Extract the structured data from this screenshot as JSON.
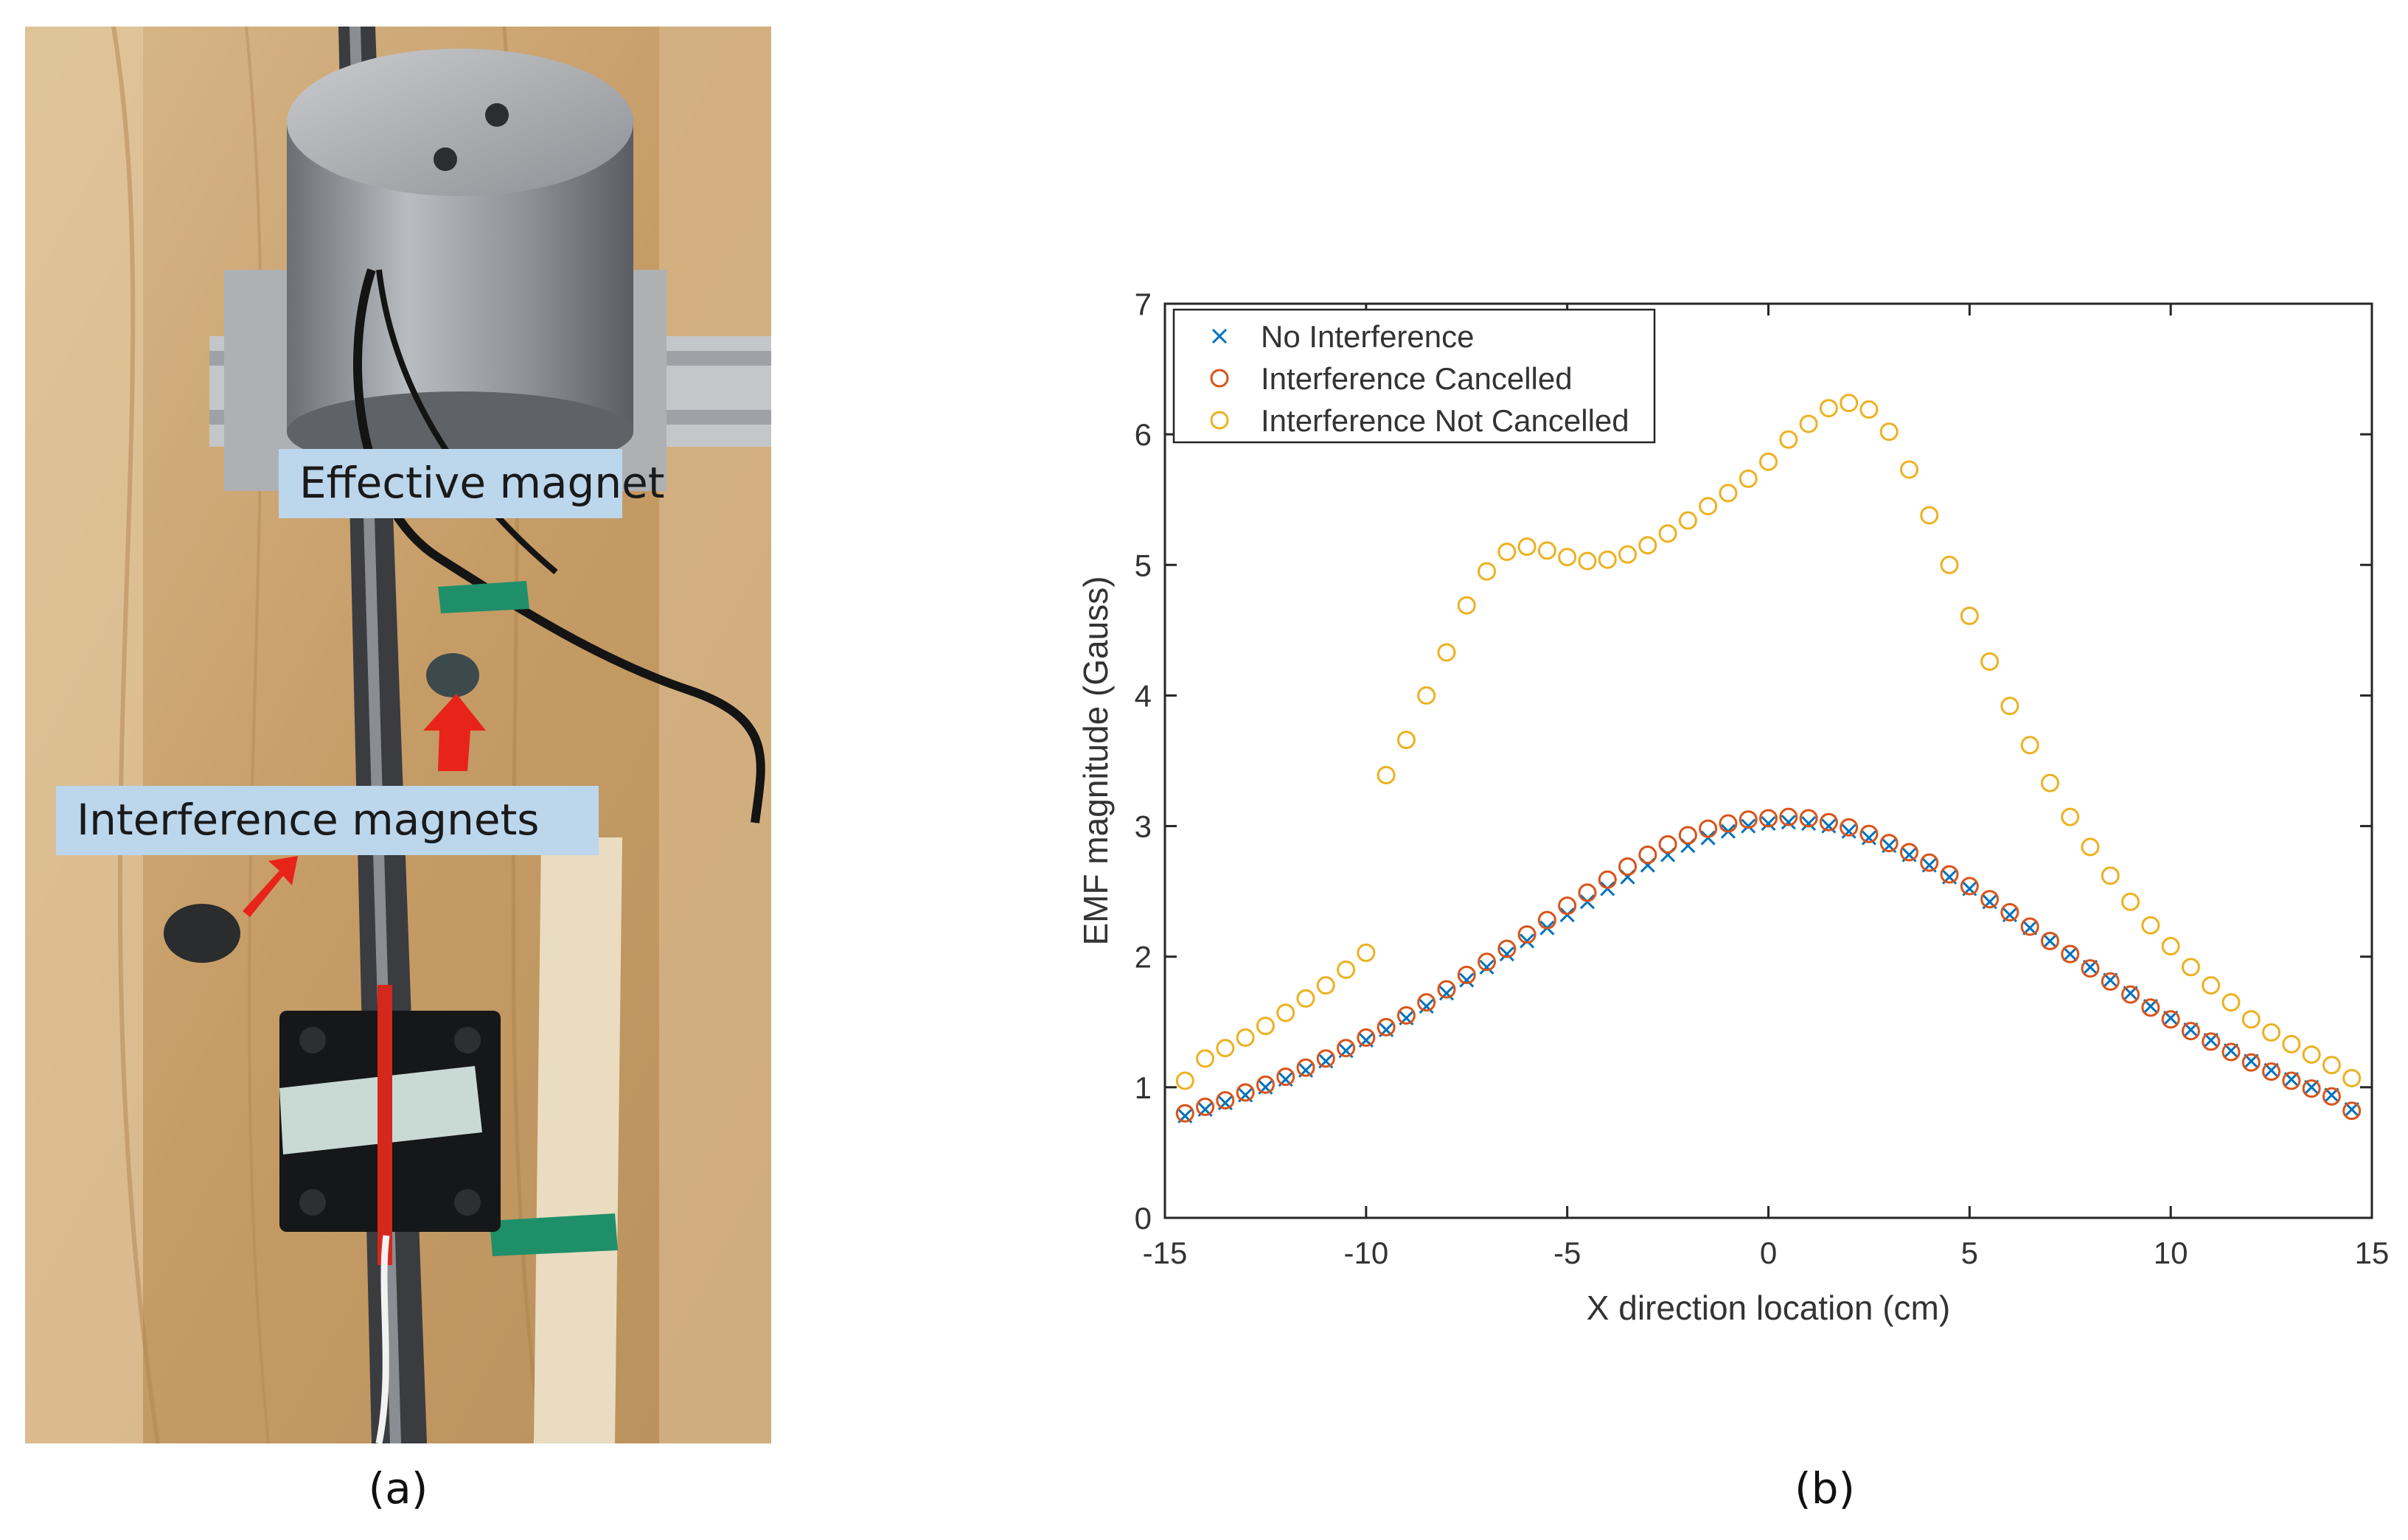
{
  "photo": {
    "effective_label": "Effective magnet",
    "interference_label": "Interference magnets",
    "caption": "(a)",
    "icons": [
      "cylinder-magnet-icon",
      "interference-magnet-icon",
      "red-arrow-icon",
      "sensor-cart-icon"
    ]
  },
  "chart_panel": {
    "caption": "(b)"
  },
  "chart_data": {
    "type": "scatter",
    "title": "",
    "xlabel": "X direction location (cm)",
    "ylabel": "EMF magnitude (Gauss)",
    "xlim": [
      -15,
      15
    ],
    "ylim": [
      0,
      7
    ],
    "xticks": [
      -15,
      -10,
      -5,
      0,
      5,
      10,
      15
    ],
    "yticks": [
      0,
      1,
      2,
      3,
      4,
      5,
      6,
      7
    ],
    "grid": false,
    "legend_position": "top-left",
    "x": [
      -14.5,
      -14,
      -13.5,
      -13,
      -12.5,
      -12,
      -11.5,
      -11,
      -10.5,
      -10,
      -9.5,
      -9,
      -8.5,
      -8,
      -7.5,
      -7,
      -6.5,
      -6,
      -5.5,
      -5,
      -4.5,
      -4,
      -3.5,
      -3,
      -2.5,
      -2,
      -1.5,
      -1,
      -0.5,
      0,
      0.5,
      1,
      1.5,
      2,
      2.5,
      3,
      3.5,
      4,
      4.5,
      5,
      5.5,
      6,
      6.5,
      7,
      7.5,
      8,
      8.5,
      9,
      9.5,
      10,
      10.5,
      11,
      11.5,
      12,
      12.5,
      13,
      13.5,
      14,
      14.5
    ],
    "series": [
      {
        "name": "No Interference",
        "marker": "x",
        "color": "#0072bd",
        "values": [
          0.78,
          0.83,
          0.88,
          0.94,
          1.0,
          1.06,
          1.13,
          1.2,
          1.28,
          1.36,
          1.44,
          1.53,
          1.62,
          1.72,
          1.82,
          1.92,
          2.02,
          2.12,
          2.22,
          2.32,
          2.42,
          2.52,
          2.61,
          2.7,
          2.78,
          2.85,
          2.91,
          2.96,
          3.0,
          3.02,
          3.03,
          3.02,
          3.0,
          2.96,
          2.91,
          2.85,
          2.78,
          2.7,
          2.61,
          2.52,
          2.42,
          2.32,
          2.22,
          2.12,
          2.02,
          1.92,
          1.82,
          1.72,
          1.62,
          1.53,
          1.44,
          1.36,
          1.28,
          1.2,
          1.13,
          1.06,
          1.0,
          0.94,
          0.83
        ]
      },
      {
        "name": "Interference Cancelled",
        "marker": "o",
        "color": "#d95319",
        "values": [
          0.8,
          0.85,
          0.9,
          0.96,
          1.02,
          1.08,
          1.15,
          1.22,
          1.3,
          1.38,
          1.46,
          1.55,
          1.65,
          1.75,
          1.86,
          1.96,
          2.06,
          2.17,
          2.28,
          2.39,
          2.49,
          2.59,
          2.69,
          2.78,
          2.86,
          2.93,
          2.98,
          3.02,
          3.05,
          3.06,
          3.07,
          3.06,
          3.03,
          2.99,
          2.94,
          2.87,
          2.8,
          2.72,
          2.63,
          2.54,
          2.44,
          2.34,
          2.23,
          2.12,
          2.02,
          1.91,
          1.81,
          1.71,
          1.61,
          1.52,
          1.43,
          1.35,
          1.27,
          1.19,
          1.12,
          1.05,
          0.99,
          0.93,
          0.82
        ]
      },
      {
        "name": "Interference Not Cancelled",
        "marker": "o",
        "color": "#edb120",
        "values": [
          1.05,
          1.22,
          1.3,
          1.38,
          1.47,
          1.57,
          1.68,
          1.78,
          1.9,
          2.03,
          3.39,
          3.66,
          4.0,
          4.33,
          4.69,
          4.95,
          5.1,
          5.14,
          5.11,
          5.06,
          5.03,
          5.04,
          5.08,
          5.15,
          5.24,
          5.34,
          5.45,
          5.55,
          5.66,
          5.79,
          5.96,
          6.08,
          6.2,
          6.24,
          6.19,
          6.02,
          5.73,
          5.38,
          5.0,
          4.61,
          4.26,
          3.92,
          3.62,
          3.33,
          3.07,
          2.84,
          2.62,
          2.42,
          2.24,
          2.08,
          1.92,
          1.78,
          1.65,
          1.52,
          1.42,
          1.33,
          1.25,
          1.17,
          1.07
        ]
      }
    ]
  }
}
